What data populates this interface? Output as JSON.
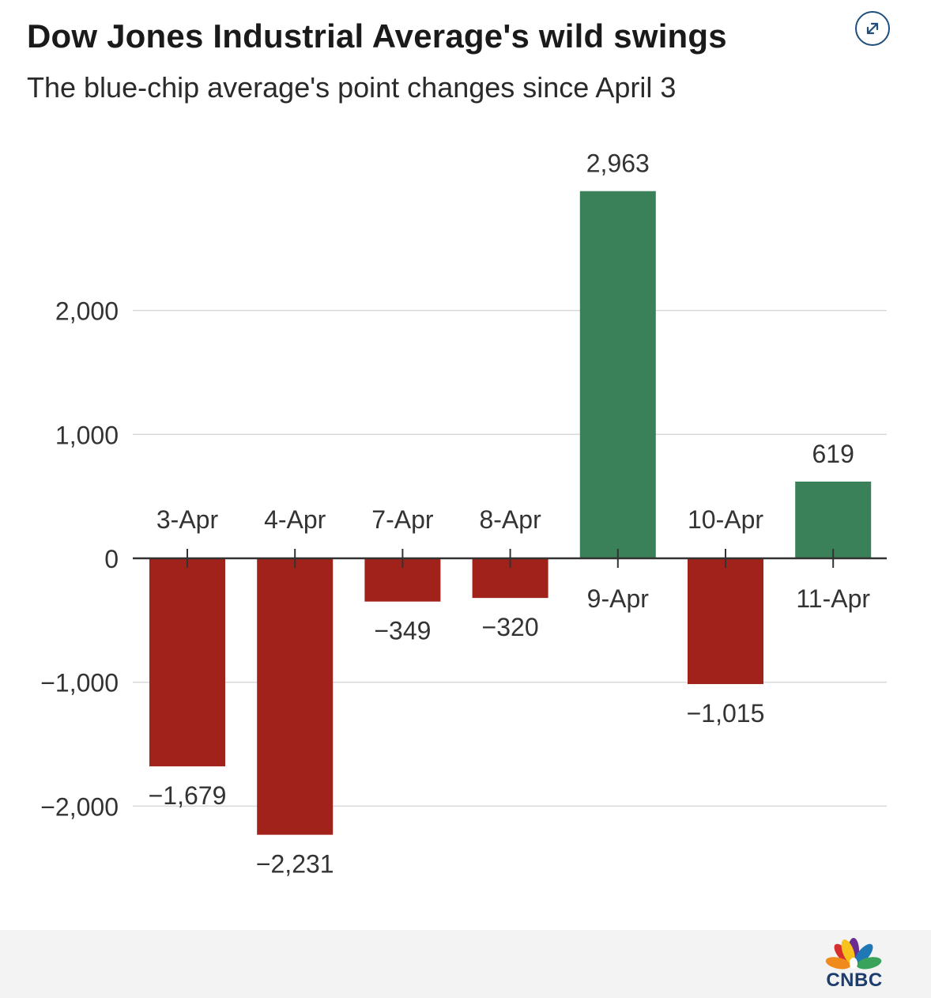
{
  "header": {
    "title": "Dow Jones Industrial Average's wild swings",
    "subtitle": "The blue-chip average's point changes since April 3"
  },
  "controls": {
    "expand_icon": "expand-arrows-icon"
  },
  "brand": {
    "logo_icon": "cnbc-peacock-icon",
    "logo_text": "CNBC"
  },
  "colors": {
    "positive": "#3a8159",
    "negative": "#a1221b",
    "gridline": "#d9d9d9",
    "axis": "#333333",
    "accent": "#1f4e7a"
  },
  "chart_data": {
    "type": "bar",
    "title": "Dow Jones Industrial Average's wild swings",
    "subtitle": "The blue-chip average's point changes since April 3",
    "xlabel": "",
    "ylabel": "",
    "categories": [
      "3-Apr",
      "4-Apr",
      "7-Apr",
      "8-Apr",
      "9-Apr",
      "10-Apr",
      "11-Apr"
    ],
    "values": [
      -1679,
      -2231,
      -349,
      -320,
      2963,
      -1015,
      619
    ],
    "data_labels": [
      "−1,679",
      "−2,231",
      "−349",
      "−320",
      "2,963",
      "−1,015",
      "619"
    ],
    "yticks": [
      -2000,
      -1000,
      0,
      1000,
      2000
    ],
    "ytick_labels": [
      "−2,000",
      "−1,000",
      "0",
      "1,000",
      "2,000"
    ],
    "ylim": [
      -2500,
      3200
    ],
    "grid": true,
    "legend": "none"
  }
}
